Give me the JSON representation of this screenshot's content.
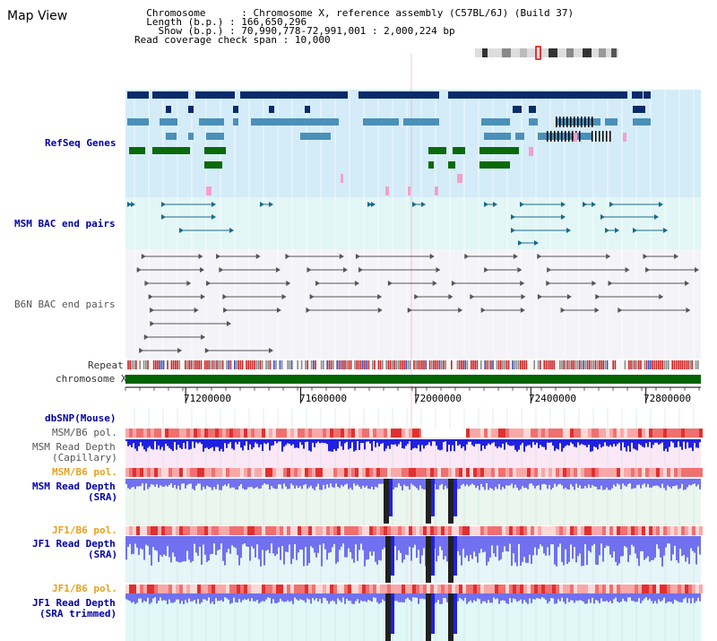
{
  "page": {
    "title": "Map View"
  },
  "header": {
    "chromosome_label": "Chromosome      ",
    "chromosome_value": "Chromosome X, reference assembly (C57BL/6J) (Build 37)",
    "length_label": "Length (b.p.)",
    "length_value": "166,650,296",
    "show_label": "Show (b.p.)",
    "show_value": "70,990,778-72,991,001 : 2,000,224 bp",
    "span_label": "Read coverage check span",
    "span_value": "10,000"
  },
  "tracks": {
    "refseq": "RefSeq Genes",
    "msm_bac": "MSM BAC end pairs",
    "b6n_bac": "B6N BAC end pairs",
    "repeat": "Repeat",
    "chromosome": "chromosome X",
    "dbsnp": "dbSNP(Mouse)",
    "msm_b6_pol_1": "MSM/B6 pol.",
    "msm_read_depth_cap_1": "MSM Read Depth",
    "msm_read_depth_cap_2": "(Capillary)",
    "msm_b6_pol_2": "MSM/B6 pol.",
    "msm_read_depth_sra_1": "MSM Read Depth",
    "msm_read_depth_sra_2": "(SRA)",
    "jf1_b6_pol_1": "JF1/B6 pol.",
    "jf1_read_depth_sra_1": "JF1 Read Depth",
    "jf1_read_depth_sra_2": "(SRA)",
    "jf1_b6_pol_2": "JF1/B6 pol.",
    "jf1_read_depth_trim_1": "JF1 Read Depth",
    "jf1_read_depth_trim_2": "(SRA trimmed)"
  },
  "axis": {
    "ticks": [
      "71200000",
      "71600000",
      "72000000",
      "72400000",
      "72800000"
    ],
    "tick_values": [
      71200000,
      71600000,
      72000000,
      72400000,
      72800000
    ],
    "range": [
      70990778,
      72991001
    ]
  },
  "colors": {
    "refseq_bg": "#d4ecf8",
    "msm_bac_bg": "#e2f6f6",
    "b6n_bac_bg": "#f4f4f8",
    "chrom_bar": "#006400",
    "gene_navy": "#0a2a6a",
    "gene_steel": "#4a90b8",
    "gene_green": "#0a6a0a",
    "pink": "#f4a0c8",
    "depth_blue": "#2020e0",
    "depth_light": "#7070f0"
  }
}
